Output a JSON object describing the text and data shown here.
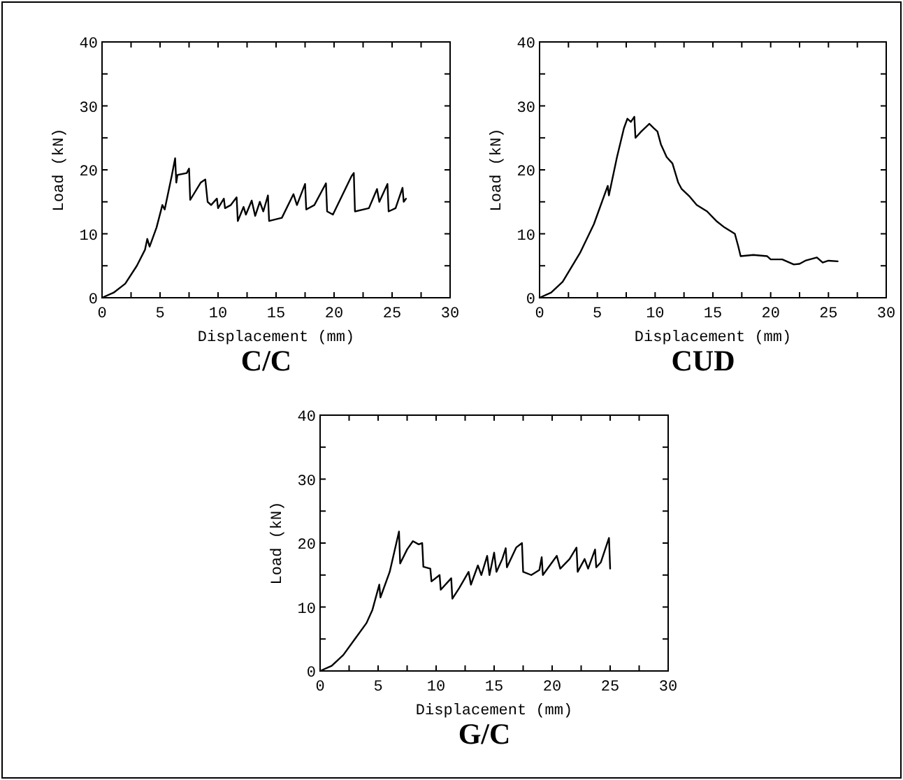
{
  "chart_data": [
    {
      "type": "line",
      "title": "C/C",
      "xlabel": "Displacement (mm)",
      "ylabel": "Load (kN)",
      "xlim": [
        0,
        30
      ],
      "ylim": [
        0,
        40
      ],
      "xticks": [
        0,
        {
          "value": 2.5,
          "label": null
        },
        5,
        {
          "value": 7.5,
          "label": null
        },
        10,
        {
          "value": 12.5,
          "label": null
        },
        15,
        {
          "value": 17.5,
          "label": null
        },
        20,
        {
          "value": 22.5,
          "label": null
        },
        25,
        {
          "value": 27.5,
          "label": null
        },
        30
      ],
      "yticks": [
        0,
        {
          "value": 5,
          "label": null
        },
        10,
        {
          "value": 15,
          "label": null
        },
        20,
        {
          "value": 25,
          "label": null
        },
        30,
        {
          "value": 35,
          "label": null
        },
        40
      ],
      "grid": false,
      "marker": "none",
      "line_style": "solid",
      "series": [
        {
          "color": "#000000",
          "x": [
            0,
            1,
            2,
            3,
            3.7,
            3.9,
            4.1,
            4.7,
            5.2,
            5.4,
            6,
            6.3,
            6.4,
            6.5,
            7.3,
            7.5,
            7.6,
            8.5,
            8.9,
            9.1,
            9.4,
            9.9,
            10,
            10.5,
            10.6,
            11.1,
            11.6,
            11.7,
            12.2,
            12.4,
            12.9,
            13.2,
            13.6,
            13.9,
            14.3,
            14.4,
            15.5,
            16.5,
            16.8,
            17.5,
            17.6,
            18.3,
            19.3,
            19.4,
            19.9,
            21.5,
            21.7,
            21.8,
            23,
            23.7,
            23.9,
            24.6,
            24.7,
            25.3,
            25.9,
            26,
            26.2
          ],
          "values": [
            0,
            0.8,
            2.2,
            5,
            7.5,
            9.2,
            8,
            11,
            14.5,
            13.8,
            19,
            21.8,
            18,
            19.2,
            19.5,
            20.2,
            15.3,
            18,
            18.5,
            15,
            14.5,
            15.5,
            14,
            15.5,
            14,
            14.5,
            15.7,
            12,
            14.2,
            13,
            15.2,
            12.8,
            15,
            13.5,
            16,
            12,
            12.5,
            16.2,
            14.5,
            17.8,
            13.8,
            14.5,
            17.9,
            13.5,
            13,
            19,
            19.5,
            13.5,
            14,
            17,
            15,
            17.8,
            13.5,
            14,
            17.2,
            15,
            15.5
          ]
        }
      ]
    },
    {
      "type": "line",
      "title": "CUD",
      "xlabel": "Displacement (mm)",
      "ylabel": "Load (kN)",
      "xlim": [
        0,
        30
      ],
      "ylim": [
        0,
        40
      ],
      "xticks": [
        0,
        {
          "value": 2.5,
          "label": null
        },
        5,
        {
          "value": 7.5,
          "label": null
        },
        10,
        {
          "value": 12.5,
          "label": null
        },
        15,
        {
          "value": 17.5,
          "label": null
        },
        20,
        {
          "value": 22.5,
          "label": null
        },
        25,
        {
          "value": 27.5,
          "label": null
        },
        30
      ],
      "yticks": [
        0,
        {
          "value": 5,
          "label": null
        },
        10,
        {
          "value": 15,
          "label": null
        },
        20,
        {
          "value": 25,
          "label": null
        },
        30,
        {
          "value": 35,
          "label": null
        },
        40
      ],
      "grid": false,
      "marker": "none",
      "line_style": "solid",
      "series": [
        {
          "color": "#000000",
          "x": [
            0,
            1,
            2,
            3,
            3.5,
            4.7,
            5.9,
            6,
            6.7,
            7.3,
            7.6,
            7.9,
            8.2,
            8.3,
            8.8,
            9.5,
            9.9,
            10.2,
            10.5,
            11,
            11.5,
            12,
            12.3,
            13,
            13.6,
            14.5,
            15.3,
            16,
            16.9,
            17.2,
            17.4,
            18.5,
            19.7,
            20,
            21,
            22,
            22.5,
            23,
            24,
            24.5,
            25,
            25.8
          ],
          "values": [
            0,
            0.8,
            2.5,
            5.5,
            7,
            11.5,
            17.5,
            16,
            22,
            26.5,
            28,
            27.5,
            28.3,
            25,
            26,
            27.2,
            26.5,
            26,
            24,
            22,
            21,
            18,
            17,
            15.8,
            14.5,
            13.5,
            12,
            11,
            10,
            8,
            6.5,
            6.7,
            6.5,
            6,
            6,
            5.2,
            5.3,
            5.8,
            6.3,
            5.5,
            5.8,
            5.7
          ]
        }
      ]
    },
    {
      "type": "line",
      "title": "G/C",
      "xlabel": "Displacement (mm)",
      "ylabel": "Load (kN)",
      "xlim": [
        0,
        30
      ],
      "ylim": [
        0,
        40
      ],
      "xticks": [
        0,
        {
          "value": 2.5,
          "label": null
        },
        5,
        {
          "value": 7.5,
          "label": null
        },
        10,
        {
          "value": 12.5,
          "label": null
        },
        15,
        {
          "value": 17.5,
          "label": null
        },
        20,
        {
          "value": 22.5,
          "label": null
        },
        25,
        {
          "value": 27.5,
          "label": null
        },
        30
      ],
      "yticks": [
        0,
        {
          "value": 5,
          "label": null
        },
        10,
        {
          "value": 15,
          "label": null
        },
        20,
        {
          "value": 25,
          "label": null
        },
        30,
        {
          "value": 35,
          "label": null
        },
        40
      ],
      "grid": false,
      "marker": "none",
      "line_style": "solid",
      "series": [
        {
          "color": "#000000",
          "x": [
            0,
            1,
            2,
            3,
            4,
            4.5,
            5.1,
            5.2,
            6,
            6.8,
            6.9,
            7.5,
            8,
            8.5,
            8.8,
            8.9,
            9.5,
            9.6,
            10.3,
            10.4,
            11.3,
            11.4,
            12,
            12.8,
            13,
            13.6,
            13.9,
            14.4,
            14.6,
            15,
            15.2,
            15.7,
            16,
            16.1,
            16.9,
            17.4,
            17.5,
            18.2,
            18.9,
            19.1,
            19.2,
            20.4,
            20.7,
            21.5,
            22.1,
            22.2,
            22.8,
            23.1,
            23.7,
            23.8,
            24.2,
            24.9,
            25
          ],
          "values": [
            0,
            0.8,
            2.5,
            5,
            7.5,
            9.5,
            13.5,
            11.5,
            15.5,
            21.8,
            16.8,
            19,
            20.3,
            19.8,
            20,
            16.3,
            16,
            14,
            15,
            12.7,
            14.5,
            11.3,
            13,
            15.5,
            13.5,
            16.5,
            15,
            18,
            15,
            18.5,
            15.5,
            17.5,
            19.2,
            16.2,
            19.3,
            20,
            15.5,
            15,
            15.8,
            17.8,
            15,
            18,
            16,
            17.5,
            19.3,
            15.5,
            17.5,
            16,
            19,
            16.2,
            17,
            20.8,
            16
          ]
        }
      ]
    }
  ]
}
